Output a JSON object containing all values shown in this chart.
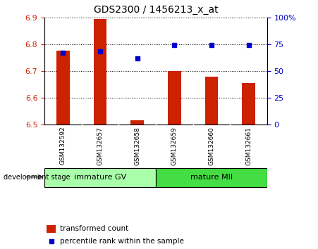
{
  "title": "GDS2300 / 1456213_x_at",
  "samples": [
    "GSM132592",
    "GSM132657",
    "GSM132658",
    "GSM132659",
    "GSM132660",
    "GSM132661"
  ],
  "bar_values": [
    6.775,
    6.895,
    6.515,
    6.7,
    6.68,
    6.655
  ],
  "bar_bottom": 6.5,
  "percentile_values": [
    67,
    68,
    62,
    74,
    74,
    74
  ],
  "percentile_scale_min": 0,
  "percentile_scale_max": 100,
  "ylim": [
    6.5,
    6.9
  ],
  "yticks_left": [
    6.5,
    6.6,
    6.7,
    6.8,
    6.9
  ],
  "yticks_right": [
    0,
    25,
    50,
    75,
    100
  ],
  "yticks_right_labels": [
    "0",
    "25",
    "50",
    "75",
    "100%"
  ],
  "bar_color": "#cc2200",
  "dot_color": "#0000cc",
  "group1_label": "immature GV",
  "group2_label": "mature MII",
  "group1_indices": [
    0,
    1,
    2
  ],
  "group2_indices": [
    3,
    4,
    5
  ],
  "group1_color": "#aaffaa",
  "group2_color": "#44dd44",
  "stage_label": "development stage",
  "legend_bar_label": "transformed count",
  "legend_dot_label": "percentile rank within the sample",
  "left_tick_color": "#cc2200",
  "right_tick_color": "#0000cc",
  "grid_color": "#000000",
  "sample_bg_color": "#d0d0d0",
  "plot_bg": "#ffffff",
  "bar_width": 0.35
}
